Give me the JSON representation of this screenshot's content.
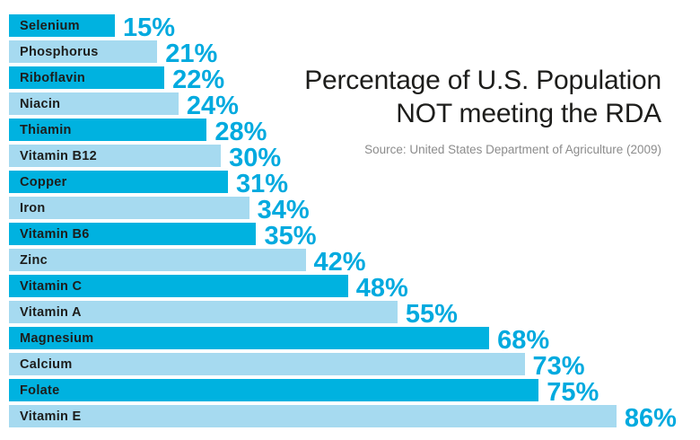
{
  "chart": {
    "title_line1": "Percentage of U.S. Population",
    "title_line2": "NOT meeting the RDA",
    "source": "Source: United States Department of Agriculture (2009)"
  },
  "chart_data": {
    "type": "bar",
    "orientation": "horizontal",
    "title": "Percentage of U.S. Population NOT meeting the RDA",
    "subtitle": "",
    "source": "Source: United States Department of Agriculture (2009)",
    "categories": [
      "Selenium",
      "Phosphorus",
      "Riboflavin",
      "Niacin",
      "Thiamin",
      "Vitamin B12",
      "Copper",
      "Iron",
      "Vitamin B6",
      "Zinc",
      "Vitamin C",
      "Vitamin A",
      "Magnesium",
      "Calcium",
      "Folate",
      "Vitamin E"
    ],
    "values": [
      15,
      21,
      22,
      24,
      28,
      30,
      31,
      34,
      35,
      42,
      48,
      55,
      68,
      73,
      75,
      86
    ],
    "value_suffix": "%",
    "xlabel": "",
    "ylabel": "",
    "xlim": [
      0,
      100
    ],
    "grid": false,
    "legend": "none",
    "category_labels_inside_bars": true,
    "value_labels_at_bar_end": true,
    "colors": {
      "bar_alternate_dark": "#00B2E0",
      "bar_alternate_light": "#A6DAF0",
      "value_label": "#00AADF",
      "category_label": "#1D1D1B",
      "title": "#1D1D1B",
      "source": "#8C8C8C",
      "background": "#FFFFFF"
    }
  }
}
